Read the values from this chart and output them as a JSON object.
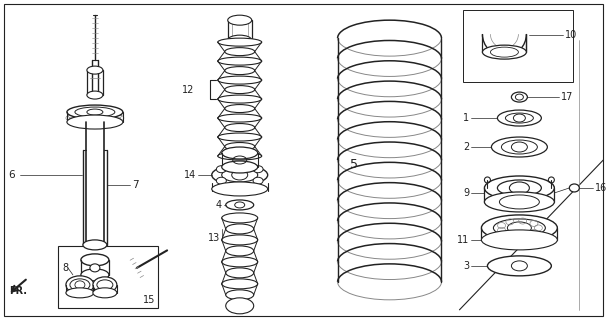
{
  "bg_color": "#ffffff",
  "line_color": "#222222",
  "fig_width": 6.09,
  "fig_height": 3.2,
  "dpi": 100,
  "gray": "#888888",
  "lightgray": "#cccccc"
}
